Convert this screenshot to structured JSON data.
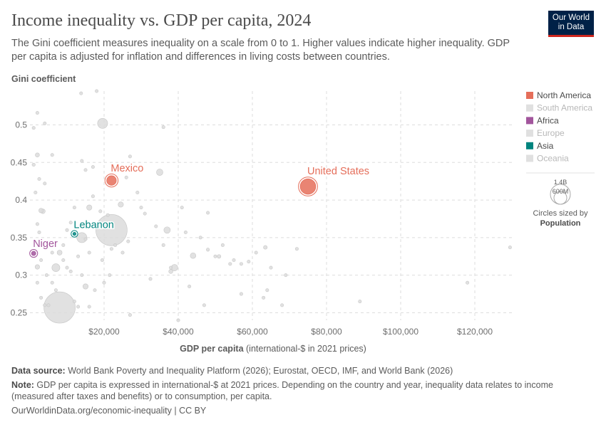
{
  "header": {
    "title": "Income inequality vs. GDP per capita, 2024",
    "subtitle": "The Gini coefficient measures inequality on a scale from 0 to 1. Higher values indicate higher inequality. GDP per capita is adjusted for inflation and differences in living costs between countries.",
    "logo_line1": "Our World",
    "logo_line2": "in Data"
  },
  "chart_data": {
    "type": "scatter",
    "ylabel": "Gini coefficient",
    "xlabel_bold": "GDP per capita",
    "xlabel_rest": " (international-$ in 2021 prices)",
    "xlim": [
      0,
      130000
    ],
    "ylim": [
      0.24,
      0.545
    ],
    "x_ticks": [
      20000,
      40000,
      60000,
      80000,
      100000,
      120000
    ],
    "x_tick_labels": [
      "$20,000",
      "$40,000",
      "$60,000",
      "$80,000",
      "$100,000",
      "$120,000"
    ],
    "y_ticks": [
      0.25,
      0.3,
      0.35,
      0.4,
      0.45,
      0.5
    ],
    "y_tick_labels": [
      "0.25",
      "0.3",
      "0.35",
      "0.4",
      "0.45",
      "0.5"
    ],
    "grid": true,
    "legend": [
      {
        "name": "North America",
        "color": "#e56e5a",
        "active": true
      },
      {
        "name": "South America",
        "color": "#e0e0e0",
        "active": false
      },
      {
        "name": "Africa",
        "color": "#a2559c",
        "active": true
      },
      {
        "name": "Europe",
        "color": "#e0e0e0",
        "active": false
      },
      {
        "name": "Asia",
        "color": "#00847e",
        "active": true
      },
      {
        "name": "Oceania",
        "color": "#e0e0e0",
        "active": false
      }
    ],
    "size_legend": {
      "large": "1.4B",
      "small": "600M",
      "caption": "Circles sized by",
      "caption_bold": "Population"
    },
    "highlighted": [
      {
        "label": "United States",
        "x": 75000,
        "y": 0.418,
        "pop_m": 340,
        "color": "#e56e5a"
      },
      {
        "label": "Mexico",
        "x": 22000,
        "y": 0.426,
        "pop_m": 130,
        "color": "#e56e5a"
      },
      {
        "label": "Lebanon",
        "x": 12000,
        "y": 0.355,
        "pop_m": 5,
        "color": "#00847e"
      },
      {
        "label": "Niger",
        "x": 1000,
        "y": 0.329,
        "pop_m": 27,
        "color": "#a2559c"
      }
    ],
    "background_points": [
      [
        22000,
        0.36,
        1400
      ],
      [
        8000,
        0.257,
        1400
      ],
      [
        19600,
        0.502,
        145
      ],
      [
        14000,
        0.35,
        145
      ],
      [
        7000,
        0.31,
        90
      ],
      [
        35000,
        0.437,
        60
      ],
      [
        39000,
        0.31,
        60
      ],
      [
        3500,
        0.385,
        30
      ],
      [
        2000,
        0.311,
        30
      ],
      [
        2000,
        0.46,
        25
      ],
      [
        1000,
        0.447,
        15
      ],
      [
        24500,
        0.394,
        40
      ],
      [
        16000,
        0.39,
        40
      ],
      [
        15000,
        0.285,
        40
      ],
      [
        8000,
        0.33,
        35
      ],
      [
        3000,
        0.386,
        30
      ],
      [
        37000,
        0.36,
        60
      ],
      [
        44000,
        0.326,
        45
      ],
      [
        38000,
        0.305,
        25
      ],
      [
        63500,
        0.337,
        20
      ],
      [
        51000,
        0.325,
        20
      ],
      [
        48000,
        0.334,
        15
      ],
      [
        57000,
        0.315,
        10
      ],
      [
        54000,
        0.315,
        10
      ],
      [
        13800,
        0.542,
        10
      ],
      [
        18000,
        0.545,
        10
      ],
      [
        22000,
        0.335,
        10
      ],
      [
        21500,
        0.3,
        10
      ],
      [
        12000,
        0.265,
        10
      ],
      [
        13000,
        0.258,
        10
      ],
      [
        16000,
        0.258,
        10
      ],
      [
        5000,
        0.26,
        10
      ],
      [
        4500,
        0.3,
        10
      ],
      [
        3000,
        0.32,
        10
      ],
      [
        6000,
        0.33,
        10
      ],
      [
        9000,
        0.34,
        10
      ],
      [
        10000,
        0.36,
        10
      ],
      [
        11000,
        0.37,
        10
      ],
      [
        12000,
        0.39,
        10
      ],
      [
        2500,
        0.357,
        10
      ],
      [
        2000,
        0.368,
        10
      ],
      [
        1500,
        0.41,
        10
      ],
      [
        2500,
        0.428,
        10
      ],
      [
        4000,
        0.422,
        10
      ],
      [
        6000,
        0.46,
        10
      ],
      [
        2000,
        0.516,
        10
      ],
      [
        1000,
        0.496,
        10
      ],
      [
        4000,
        0.502,
        10
      ],
      [
        14000,
        0.452,
        10
      ],
      [
        15000,
        0.44,
        10
      ],
      [
        17000,
        0.444,
        10
      ],
      [
        27000,
        0.458,
        10
      ],
      [
        26000,
        0.43,
        10
      ],
      [
        29000,
        0.41,
        10
      ],
      [
        30000,
        0.39,
        10
      ],
      [
        31000,
        0.382,
        10
      ],
      [
        17000,
        0.405,
        10
      ],
      [
        19000,
        0.385,
        10
      ],
      [
        21000,
        0.38,
        10
      ],
      [
        26500,
        0.345,
        10
      ],
      [
        25000,
        0.33,
        10
      ],
      [
        23000,
        0.34,
        10
      ],
      [
        19500,
        0.32,
        10
      ],
      [
        16000,
        0.33,
        10
      ],
      [
        15000,
        0.348,
        10
      ],
      [
        13000,
        0.325,
        10
      ],
      [
        10000,
        0.31,
        10
      ],
      [
        9000,
        0.32,
        10
      ],
      [
        6000,
        0.29,
        10
      ],
      [
        4000,
        0.26,
        10
      ],
      [
        3000,
        0.27,
        10
      ],
      [
        2000,
        0.29,
        10
      ],
      [
        7000,
        0.28,
        10
      ],
      [
        11000,
        0.305,
        10
      ],
      [
        14000,
        0.3,
        10
      ],
      [
        17500,
        0.28,
        10
      ],
      [
        20000,
        0.29,
        10
      ],
      [
        27000,
        0.247,
        10
      ],
      [
        32500,
        0.295,
        10
      ],
      [
        36000,
        0.34,
        10
      ],
      [
        38000,
        0.31,
        10
      ],
      [
        40000,
        0.24,
        10
      ],
      [
        43000,
        0.285,
        10
      ],
      [
        47000,
        0.26,
        10
      ],
      [
        48000,
        0.383,
        10
      ],
      [
        42000,
        0.357,
        10
      ],
      [
        46000,
        0.35,
        10
      ],
      [
        50000,
        0.325,
        10
      ],
      [
        52000,
        0.34,
        10
      ],
      [
        55000,
        0.32,
        10
      ],
      [
        57000,
        0.275,
        10
      ],
      [
        59000,
        0.318,
        10
      ],
      [
        61000,
        0.33,
        10
      ],
      [
        63000,
        0.27,
        10
      ],
      [
        64000,
        0.28,
        10
      ],
      [
        65000,
        0.31,
        10
      ],
      [
        68000,
        0.26,
        10
      ],
      [
        69000,
        0.3,
        10
      ],
      [
        72000,
        0.335,
        10
      ],
      [
        89000,
        0.265,
        10
      ],
      [
        118000,
        0.29,
        10
      ],
      [
        129500,
        0.337,
        10
      ],
      [
        36000,
        0.497,
        10
      ],
      [
        34000,
        0.365,
        10
      ],
      [
        41000,
        0.39,
        10
      ]
    ]
  },
  "footer": {
    "source_label": "Data source:",
    "source_text": " World Bank Poverty and Inequality Platform (2026); Eurostat, OECD, IMF, and World Bank (2026)",
    "note_label": "Note:",
    "note_text": " GDP per capita is expressed in international-$ at 2021 prices. Depending on the country and year, inequality data relates to income (measured after taxes and benefits) or to consumption, per capita.",
    "url": "OurWorldinData.org/economic-inequality | CC BY"
  }
}
